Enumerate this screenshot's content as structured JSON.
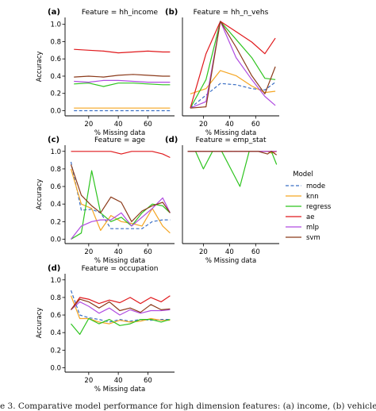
{
  "figure": {
    "caption": "e 3.  Comparative model performance for high dimension features: (a) income, (b) vehicle ownership, (c) age, (d) employment"
  },
  "legend": {
    "title": "Model",
    "placement": "right"
  },
  "series_styles": [
    {
      "name": "mode",
      "color": "#3b6fc4",
      "dash": true
    },
    {
      "name": "knn",
      "color": "#f5a623",
      "dash": false
    },
    {
      "name": "regress",
      "color": "#2ec41f",
      "dash": false
    },
    {
      "name": "ae",
      "color": "#e0191c",
      "dash": false
    },
    {
      "name": "mlp",
      "color": "#b04ce0",
      "dash": false
    },
    {
      "name": "svm",
      "color": "#8b3a1a",
      "dash": false
    }
  ],
  "chart_data": [
    {
      "panel": "(a)",
      "type": "line",
      "title": "Feature = hh_income",
      "xlabel": "% Missing data",
      "ylabel": "Accuracy",
      "xlim": [
        4,
        78
      ],
      "ylim": [
        -0.06,
        1.08
      ],
      "xticks": [
        20,
        40,
        60
      ],
      "yticks": [
        0.0,
        0.2,
        0.4,
        0.6,
        0.8,
        1.0
      ],
      "show_xticks": true,
      "show_yticks": true,
      "grid": false,
      "x": [
        10,
        20,
        30,
        40,
        50,
        60,
        70,
        75
      ],
      "series": [
        {
          "name": "mode",
          "values": [
            0.0,
            0.0,
            0.0,
            0.0,
            0.0,
            0.0,
            0.0,
            0.0
          ]
        },
        {
          "name": "knn",
          "values": [
            0.03,
            0.03,
            0.03,
            0.03,
            0.03,
            0.03,
            0.03,
            0.03
          ]
        },
        {
          "name": "regress",
          "values": [
            0.31,
            0.32,
            0.28,
            0.32,
            0.32,
            0.31,
            0.3,
            0.3
          ]
        },
        {
          "name": "ae",
          "values": [
            0.71,
            0.7,
            0.69,
            0.67,
            0.68,
            0.69,
            0.68,
            0.68
          ]
        },
        {
          "name": "mlp",
          "values": [
            0.34,
            0.33,
            0.35,
            0.35,
            0.34,
            0.33,
            0.33,
            0.33
          ]
        },
        {
          "name": "svm",
          "values": [
            0.39,
            0.4,
            0.39,
            0.41,
            0.42,
            0.41,
            0.4,
            0.4
          ]
        }
      ]
    },
    {
      "panel": "(b)",
      "type": "line",
      "title": "Feature = hh_n_vehs",
      "xlabel": "% Missing data",
      "ylabel": "",
      "xlim": [
        4,
        78
      ],
      "ylim": [
        0.27,
        1.03
      ],
      "xticks": [
        20,
        40,
        60
      ],
      "yticks": [],
      "show_xticks": true,
      "show_yticks": false,
      "grid": false,
      "x": [
        10,
        22,
        33,
        45,
        57,
        67,
        75
      ],
      "series": [
        {
          "name": "mode",
          "values": [
            0.33,
            0.43,
            0.52,
            0.51,
            0.48,
            0.47,
            0.53
          ]
        },
        {
          "name": "knn",
          "values": [
            0.44,
            0.48,
            0.62,
            0.58,
            0.5,
            0.45,
            0.46
          ]
        },
        {
          "name": "regress",
          "values": [
            0.33,
            0.55,
            1.0,
            0.86,
            0.72,
            0.56,
            0.55
          ]
        },
        {
          "name": "ae",
          "values": [
            0.33,
            0.75,
            1.0,
            0.92,
            0.84,
            0.75,
            0.87
          ]
        },
        {
          "name": "mlp",
          "values": [
            0.33,
            0.38,
            1.0,
            0.72,
            0.55,
            0.42,
            0.35
          ]
        },
        {
          "name": "svm",
          "values": [
            0.33,
            0.34,
            1.0,
            0.8,
            0.58,
            0.44,
            0.65
          ]
        }
      ]
    },
    {
      "panel": "(c)",
      "type": "line",
      "title": "Feature = age",
      "xlabel": "% Missing data",
      "ylabel": "Accuracy",
      "xlim": [
        4,
        78
      ],
      "ylim": [
        -0.05,
        1.07
      ],
      "xticks": [
        20,
        40,
        60
      ],
      "yticks": [
        0.0,
        0.2,
        0.4,
        0.6,
        0.8,
        1.0
      ],
      "show_xticks": true,
      "show_yticks": true,
      "grid": false,
      "x": [
        8,
        15,
        22,
        28,
        35,
        42,
        49,
        56,
        63,
        70,
        75
      ],
      "series": [
        {
          "name": "mode",
          "values": [
            0.88,
            0.33,
            0.34,
            0.3,
            0.12,
            0.12,
            0.12,
            0.12,
            0.2,
            0.22,
            0.22
          ]
        },
        {
          "name": "knn",
          "values": [
            0.8,
            0.4,
            0.35,
            0.1,
            0.27,
            0.2,
            0.18,
            0.15,
            0.35,
            0.15,
            0.07
          ]
        },
        {
          "name": "regress",
          "values": [
            0.0,
            0.07,
            0.78,
            0.3,
            0.2,
            0.25,
            0.15,
            0.3,
            0.4,
            0.38,
            0.3
          ]
        },
        {
          "name": "ae",
          "values": [
            1.0,
            1.0,
            1.0,
            1.0,
            1.0,
            0.97,
            1.0,
            1.0,
            1.0,
            0.97,
            0.93
          ]
        },
        {
          "name": "mlp",
          "values": [
            0.0,
            0.15,
            0.2,
            0.22,
            0.22,
            0.3,
            0.15,
            0.25,
            0.35,
            0.47,
            0.3
          ]
        },
        {
          "name": "svm",
          "values": [
            0.85,
            0.5,
            0.38,
            0.3,
            0.48,
            0.42,
            0.2,
            0.32,
            0.38,
            0.42,
            0.3
          ]
        }
      ]
    },
    {
      "panel": "(d)",
      "type": "line",
      "title": "Feature = emp_stat",
      "xlabel": "% Missing data",
      "ylabel": "",
      "xlim": [
        4,
        78
      ],
      "ylim": [
        -0.05,
        1.07
      ],
      "xticks": [
        20,
        40,
        60
      ],
      "yticks": [],
      "show_xticks": true,
      "show_yticks": false,
      "grid": false,
      "x": [
        8,
        14,
        20,
        27,
        34,
        41,
        48,
        55,
        62,
        69,
        72,
        76
      ],
      "series": [
        {
          "name": "mode",
          "values": [
            1.0,
            1.0,
            1.0,
            1.0,
            1.0,
            1.0,
            1.0,
            1.0,
            1.0,
            1.0,
            1.0,
            1.0
          ]
        },
        {
          "name": "knn",
          "values": [
            1.0,
            1.0,
            1.0,
            1.0,
            1.0,
            1.0,
            1.0,
            1.0,
            1.0,
            1.0,
            0.98,
            1.0
          ]
        },
        {
          "name": "regress",
          "values": [
            1.0,
            1.0,
            0.8,
            1.0,
            1.0,
            0.8,
            0.6,
            1.0,
            1.0,
            1.0,
            1.0,
            0.85
          ]
        },
        {
          "name": "ae",
          "values": [
            1.0,
            1.0,
            1.0,
            1.0,
            1.0,
            1.0,
            1.0,
            1.0,
            1.0,
            1.0,
            1.0,
            1.0
          ]
        },
        {
          "name": "mlp",
          "values": [
            1.0,
            1.0,
            1.0,
            1.0,
            1.0,
            1.0,
            1.0,
            1.0,
            1.0,
            1.0,
            1.0,
            1.0
          ]
        },
        {
          "name": "svm",
          "values": [
            1.0,
            1.0,
            1.0,
            1.0,
            1.0,
            1.0,
            1.0,
            1.0,
            1.0,
            0.97,
            1.0,
            0.96
          ]
        }
      ]
    },
    {
      "panel": "(d)",
      "type": "line",
      "title": "Feature = occupation",
      "xlabel": "% Missing data",
      "ylabel": "Accuracy",
      "xlim": [
        4,
        78
      ],
      "ylim": [
        -0.05,
        1.07
      ],
      "xticks": [
        20,
        40,
        60
      ],
      "yticks": [
        0.0,
        0.2,
        0.4,
        0.6,
        0.8,
        1.0
      ],
      "show_xticks": true,
      "show_yticks": true,
      "grid": false,
      "x": [
        8,
        14,
        20,
        27,
        34,
        41,
        48,
        55,
        62,
        69,
        75
      ],
      "series": [
        {
          "name": "mode",
          "values": [
            0.88,
            0.6,
            0.57,
            0.55,
            0.52,
            0.55,
            0.53,
            0.55,
            0.54,
            0.55,
            0.55
          ]
        },
        {
          "name": "knn",
          "values": [
            0.82,
            0.56,
            0.56,
            0.52,
            0.5,
            0.54,
            0.52,
            0.53,
            0.56,
            0.54,
            0.54
          ]
        },
        {
          "name": "regress",
          "values": [
            0.5,
            0.38,
            0.56,
            0.5,
            0.55,
            0.48,
            0.5,
            0.55,
            0.55,
            0.52,
            0.55
          ]
        },
        {
          "name": "ae",
          "values": [
            0.66,
            0.8,
            0.78,
            0.73,
            0.77,
            0.74,
            0.8,
            0.73,
            0.8,
            0.75,
            0.82
          ]
        },
        {
          "name": "mlp",
          "values": [
            0.66,
            0.75,
            0.7,
            0.62,
            0.68,
            0.6,
            0.66,
            0.62,
            0.65,
            0.65,
            0.66
          ]
        },
        {
          "name": "svm",
          "values": [
            0.66,
            0.78,
            0.75,
            0.68,
            0.75,
            0.65,
            0.68,
            0.63,
            0.72,
            0.66,
            0.67
          ]
        }
      ]
    }
  ]
}
